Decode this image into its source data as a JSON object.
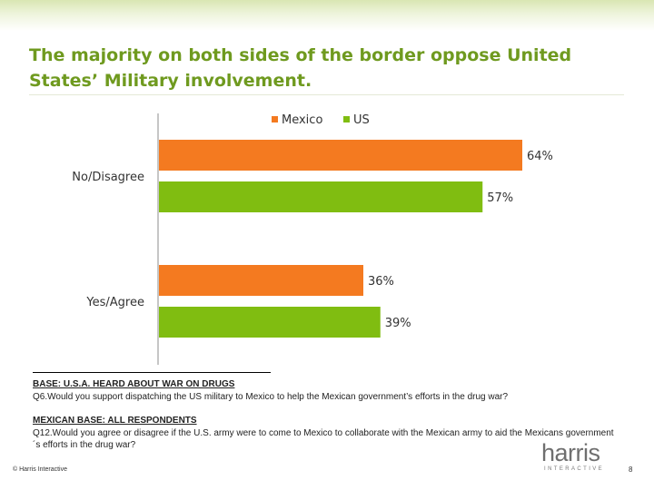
{
  "slide": {
    "title": "The majority on both sides of the border oppose United States’ Military involvement.",
    "base1_heading": "BASE: U.S.A. HEARD ABOUT WAR ON DRUGS",
    "base1_question": "Q6.Would you support dispatching the US military to Mexico to help the Mexican government’s efforts in the drug war?",
    "base2_heading": "MEXICAN BASE: ALL RESPONDENTS",
    "base2_question": "Q12.Would you agree or disagree if the U.S. army were to come to Mexico to collaborate with the Mexican army to aid the Mexicans government´s efforts in the drug war?",
    "copyright": "© Harris Interactive",
    "logo_word": "harris",
    "logo_sub": "INTERACTIVE",
    "page_number": "8"
  },
  "chart_data": {
    "type": "bar",
    "orientation": "horizontal",
    "categories": [
      "No/Disagree",
      "Yes/Agree"
    ],
    "series": [
      {
        "name": "Mexico",
        "color": "#f47a20",
        "values": [
          64,
          36
        ]
      },
      {
        "name": "US",
        "color": "#80bd11",
        "values": [
          57,
          39
        ]
      }
    ],
    "value_suffix": "%",
    "xlim": [
      0,
      64
    ],
    "grid": false,
    "legend": "top-center"
  }
}
